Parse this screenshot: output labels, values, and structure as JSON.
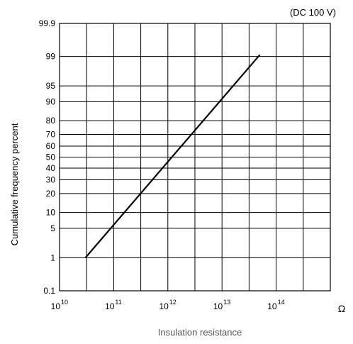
{
  "chart_data": {
    "type": "line",
    "annotation": "(DC 100 V)",
    "xlabel": "Insulation resistance",
    "ylabel": "Cumulative frequency percent",
    "x_unit": "Ω",
    "x_scale": "log",
    "y_scale": "probability",
    "xlim": [
      10000000000.0,
      1000000000000000.0
    ],
    "ylim": [
      0.1,
      99.9
    ],
    "x_ticks": [
      {
        "base": "10",
        "exp": "10",
        "value": 10000000000.0
      },
      {
        "base": "10",
        "exp": "11",
        "value": 100000000000.0
      },
      {
        "base": "10",
        "exp": "12",
        "value": 1000000000000.0
      },
      {
        "base": "10",
        "exp": "13",
        "value": 10000000000000.0
      },
      {
        "base": "10",
        "exp": "14",
        "value": 100000000000000.0
      }
    ],
    "y_ticks": [
      "0.1",
      "1",
      "5",
      "10",
      "20",
      "30",
      "40",
      "50",
      "60",
      "70",
      "80",
      "90",
      "95",
      "99",
      "99.9"
    ],
    "grid": true,
    "series": [
      {
        "x": [
          30000000000.0,
          50000000000000.0
        ],
        "y": [
          1,
          99.1
        ]
      }
    ]
  }
}
